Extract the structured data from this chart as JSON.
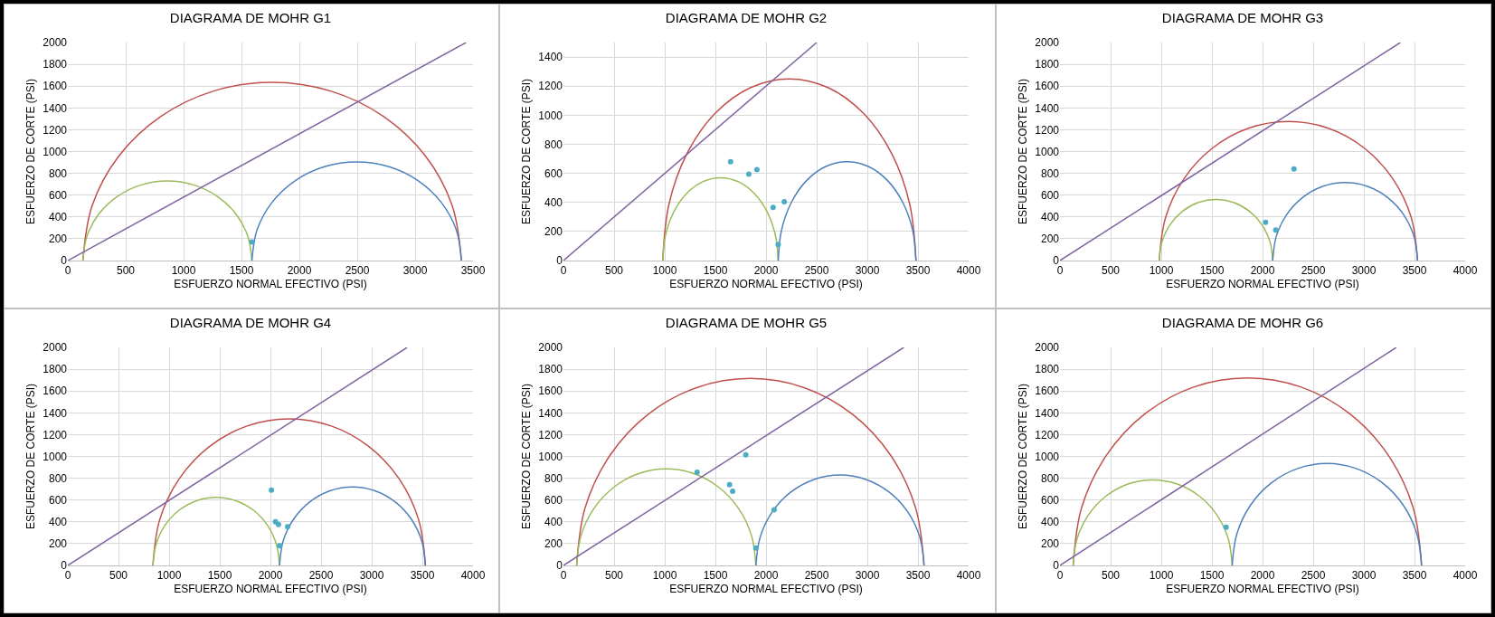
{
  "chart_data": [
    {
      "type": "line",
      "title": "DIAGRAMA DE MOHR G1",
      "xlabel": "ESFUERZO NORMAL EFECTIVO (PSI)",
      "ylabel": "ESFUERZO DE CORTE (PSI)",
      "xlim": [
        0,
        3500
      ],
      "xticks": [
        0,
        500,
        1000,
        1500,
        2000,
        2500,
        3000,
        3500
      ],
      "ylim": [
        0,
        2000
      ],
      "yticks": [
        0,
        200,
        400,
        600,
        800,
        1000,
        1200,
        1400,
        1600,
        1800,
        2000
      ],
      "grid": true,
      "series": [
        {
          "type": "line",
          "color": "#c0504d",
          "x": [
            130,
            210,
            442,
            804,
            1260,
            1765,
            2270,
            2726,
            3088,
            3320,
            3400
          ],
          "values": [
            0,
            505,
            961,
            1323,
            1555,
            1635,
            1555,
            1323,
            961,
            505,
            0
          ]
        },
        {
          "type": "line",
          "color": "#9bbb59",
          "x": [
            130,
            166,
            269,
            431,
            634,
            860,
            1086,
            1289,
            1451,
            1554,
            1590
          ],
          "values": [
            0,
            226,
            429,
            591,
            694,
            730,
            694,
            591,
            429,
            226,
            0
          ]
        },
        {
          "type": "line",
          "color": "#4f81bd",
          "x": [
            1590,
            1634,
            1763,
            1963,
            2215,
            2495,
            2775,
            3027,
            3227,
            3356,
            3400
          ],
          "values": [
            0,
            280,
            532,
            732,
            861,
            905,
            861,
            732,
            532,
            280,
            0
          ]
        },
        {
          "type": "line",
          "color": "#8064a2",
          "x": [
            0,
            3440
          ],
          "values": [
            0,
            2000
          ]
        },
        {
          "type": "scatter",
          "marker": "circle",
          "color": "#4bacc6",
          "x": [
            1590
          ],
          "values": [
            170
          ]
        }
      ]
    },
    {
      "type": "line",
      "title": "DIAGRAMA DE MOHR G2",
      "xlabel": "ESFUERZO NORMAL EFECTIVO (PSI)",
      "ylabel": "ESFUERZO DE CORTE (PSI)",
      "xlim": [
        0,
        4000
      ],
      "xticks": [
        0,
        500,
        1000,
        1500,
        2000,
        2500,
        3000,
        3500,
        4000
      ],
      "ylim": [
        0,
        1500
      ],
      "yticks": [
        0,
        200,
        400,
        600,
        800,
        1000,
        1200,
        1400
      ],
      "grid": true,
      "series": [
        {
          "type": "line",
          "color": "#c0504d",
          "x": [
            980,
            1041,
            1219,
            1495,
            1844,
            2230,
            2616,
            2965,
            3241,
            3419,
            3480
          ],
          "values": [
            0,
            386,
            735,
            1011,
            1189,
            1250,
            1189,
            1011,
            735,
            386,
            0
          ]
        },
        {
          "type": "line",
          "color": "#9bbb59",
          "x": [
            980,
            1008,
            1089,
            1215,
            1374,
            1550,
            1726,
            1885,
            2011,
            2092,
            2120
          ],
          "values": [
            0,
            176,
            335,
            461,
            542,
            570,
            542,
            461,
            335,
            176,
            0
          ]
        },
        {
          "type": "line",
          "color": "#4f81bd",
          "x": [
            2120,
            2153,
            2250,
            2400,
            2590,
            2800,
            3010,
            3200,
            3350,
            3447,
            3480
          ],
          "values": [
            0,
            210,
            400,
            550,
            647,
            680,
            647,
            550,
            400,
            210,
            0
          ]
        },
        {
          "type": "line",
          "color": "#8064a2",
          "x": [
            0,
            2500
          ],
          "values": [
            0,
            1500
          ]
        },
        {
          "type": "scatter",
          "marker": "circle",
          "color": "#4bacc6",
          "x": [
            1650,
            1830,
            1910,
            2070,
            2180,
            2120
          ],
          "values": [
            680,
            595,
            625,
            365,
            405,
            110
          ]
        }
      ]
    },
    {
      "type": "line",
      "title": "DIAGRAMA DE MOHR G3",
      "xlabel": "ESFUERZO NORMAL EFECTIVO (PSI)",
      "ylabel": "ESFUERZO DE CORTE (PSI)",
      "xlim": [
        0,
        4000
      ],
      "xticks": [
        0,
        500,
        1000,
        1500,
        2000,
        2500,
        3000,
        3500,
        4000
      ],
      "ylim": [
        0,
        2000
      ],
      "yticks": [
        0,
        200,
        400,
        600,
        800,
        1000,
        1200,
        1400,
        1600,
        1800,
        2000
      ],
      "grid": true,
      "series": [
        {
          "type": "line",
          "color": "#c0504d",
          "x": [
            980,
            1042,
            1224,
            1505,
            1861,
            2255,
            2649,
            3005,
            3286,
            3468,
            3530
          ],
          "values": [
            0,
            394,
            750,
            1031,
            1213,
            1275,
            1213,
            1031,
            750,
            394,
            0
          ]
        },
        {
          "type": "line",
          "color": "#9bbb59",
          "x": [
            980,
            1007,
            1087,
            1211,
            1367,
            1540,
            1713,
            1869,
            1993,
            2073,
            2100
          ],
          "values": [
            0,
            173,
            329,
            453,
            533,
            560,
            533,
            453,
            329,
            173,
            0
          ]
        },
        {
          "type": "line",
          "color": "#4f81bd",
          "x": [
            2100,
            2135,
            2237,
            2395,
            2594,
            2815,
            3036,
            3235,
            3393,
            3495,
            3530
          ],
          "values": [
            0,
            221,
            420,
            578,
            680,
            715,
            680,
            578,
            420,
            221,
            0
          ]
        },
        {
          "type": "line",
          "color": "#8064a2",
          "x": [
            0,
            3360
          ],
          "values": [
            0,
            2000
          ]
        },
        {
          "type": "scatter",
          "marker": "circle",
          "color": "#4bacc6",
          "x": [
            2030,
            2130,
            2310
          ],
          "values": [
            350,
            280,
            840
          ]
        }
      ]
    },
    {
      "type": "line",
      "title": "DIAGRAMA DE MOHR G4",
      "xlabel": "ESFUERZO NORMAL EFECTIVO (PSI)",
      "ylabel": "ESFUERZO DE CORTE (PSI)",
      "xlim": [
        0,
        4000
      ],
      "xticks": [
        0,
        500,
        1000,
        1500,
        2000,
        2500,
        3000,
        3500,
        4000
      ],
      "ylim": [
        0,
        2000
      ],
      "yticks": [
        0,
        200,
        400,
        600,
        800,
        1000,
        1200,
        1400,
        1600,
        1800,
        2000
      ],
      "grid": true,
      "series": [
        {
          "type": "line",
          "color": "#c0504d",
          "x": [
            840,
            906,
            1097,
            1394,
            1769,
            2185,
            2601,
            2976,
            3273,
            3464,
            3530
          ],
          "values": [
            0,
            416,
            791,
            1088,
            1279,
            1345,
            1279,
            1088,
            791,
            416,
            0
          ]
        },
        {
          "type": "line",
          "color": "#9bbb59",
          "x": [
            840,
            871,
            959,
            1098,
            1272,
            1465,
            1658,
            1833,
            1971,
            2059,
            2090
          ],
          "values": [
            0,
            193,
            368,
            506,
            594,
            625,
            594,
            506,
            368,
            193,
            0
          ]
        },
        {
          "type": "line",
          "color": "#4f81bd",
          "x": [
            2090,
            2125,
            2228,
            2387,
            2588,
            2810,
            3032,
            3233,
            3392,
            3495,
            3530
          ],
          "values": [
            0,
            222,
            423,
            582,
            685,
            720,
            685,
            582,
            423,
            222,
            0
          ]
        },
        {
          "type": "line",
          "color": "#8064a2",
          "x": [
            0,
            3350
          ],
          "values": [
            0,
            2000
          ]
        },
        {
          "type": "scatter",
          "marker": "circle",
          "color": "#4bacc6",
          "x": [
            2010,
            2050,
            2080,
            2170,
            2090
          ],
          "values": [
            690,
            400,
            375,
            355,
            180
          ]
        }
      ]
    },
    {
      "type": "line",
      "title": "DIAGRAMA DE MOHR G5",
      "xlabel": "ESFUERZO NORMAL EFECTIVO (PSI)",
      "ylabel": "ESFUERZO DE CORTE (PSI)",
      "xlim": [
        0,
        4000
      ],
      "xticks": [
        0,
        500,
        1000,
        1500,
        2000,
        2500,
        3000,
        3500,
        4000
      ],
      "ylim": [
        0,
        2000
      ],
      "yticks": [
        0,
        200,
        400,
        600,
        800,
        1000,
        1200,
        1400,
        1600,
        1800,
        2000
      ],
      "grid": true,
      "series": [
        {
          "type": "line",
          "color": "#c0504d",
          "x": [
            130,
            214,
            458,
            837,
            1315,
            1845,
            2375,
            2853,
            3232,
            3476,
            3560
          ],
          "values": [
            0,
            530,
            1008,
            1387,
            1631,
            1715,
            1631,
            1387,
            1008,
            530,
            0
          ]
        },
        {
          "type": "line",
          "color": "#9bbb59",
          "x": [
            130,
            173,
            299,
            495,
            742,
            1015,
            1288,
            1535,
            1731,
            1857,
            1900
          ],
          "values": [
            0,
            273,
            520,
            716,
            842,
            885,
            842,
            716,
            520,
            273,
            0
          ]
        },
        {
          "type": "line",
          "color": "#4f81bd",
          "x": [
            1900,
            1941,
            2059,
            2242,
            2474,
            2730,
            2986,
            3218,
            3401,
            3519,
            3560
          ],
          "values": [
            0,
            256,
            488,
            671,
            789,
            830,
            789,
            671,
            488,
            256,
            0
          ]
        },
        {
          "type": "line",
          "color": "#8064a2",
          "x": [
            0,
            3360
          ],
          "values": [
            0,
            2000
          ]
        },
        {
          "type": "scatter",
          "marker": "circle",
          "color": "#4bacc6",
          "x": [
            1320,
            1800,
            1640,
            1670,
            2080,
            1900
          ],
          "values": [
            855,
            1015,
            740,
            680,
            510,
            160
          ]
        }
      ]
    },
    {
      "type": "line",
      "title": "DIAGRAMA DE MOHR G6",
      "xlabel": "ESFUERZO NORMAL EFECTIVO (PSI)",
      "ylabel": "ESFUERZO DE CORTE (PSI)",
      "xlim": [
        0,
        4000
      ],
      "xticks": [
        0,
        500,
        1000,
        1500,
        2000,
        2500,
        3000,
        3500,
        4000
      ],
      "ylim": [
        0,
        2000
      ],
      "yticks": [
        0,
        200,
        400,
        600,
        800,
        1000,
        1200,
        1400,
        1600,
        1800,
        2000
      ],
      "grid": true,
      "series": [
        {
          "type": "line",
          "color": "#c0504d",
          "x": [
            130,
            214,
            459,
            839,
            1319,
            1850,
            2381,
            2861,
            3241,
            3486,
            3570
          ],
          "values": [
            0,
            531,
            1011,
            1391,
            1636,
            1720,
            1636,
            1391,
            1011,
            531,
            0
          ]
        },
        {
          "type": "line",
          "color": "#9bbb59",
          "x": [
            130,
            168,
            280,
            453,
            672,
            915,
            1158,
            1377,
            1550,
            1662,
            1700
          ],
          "values": [
            0,
            243,
            462,
            635,
            747,
            785,
            747,
            635,
            462,
            243,
            0
          ]
        },
        {
          "type": "line",
          "color": "#4f81bd",
          "x": [
            1700,
            1746,
            1879,
            2085,
            2346,
            2635,
            2924,
            3185,
            3391,
            3524,
            3570
          ],
          "values": [
            0,
            289,
            550,
            756,
            889,
            935,
            889,
            756,
            550,
            289,
            0
          ]
        },
        {
          "type": "line",
          "color": "#8064a2",
          "x": [
            0,
            3320
          ],
          "values": [
            0,
            2000
          ]
        },
        {
          "type": "scatter",
          "marker": "circle",
          "color": "#4bacc6",
          "x": [
            1640
          ],
          "values": [
            350
          ]
        }
      ]
    }
  ]
}
